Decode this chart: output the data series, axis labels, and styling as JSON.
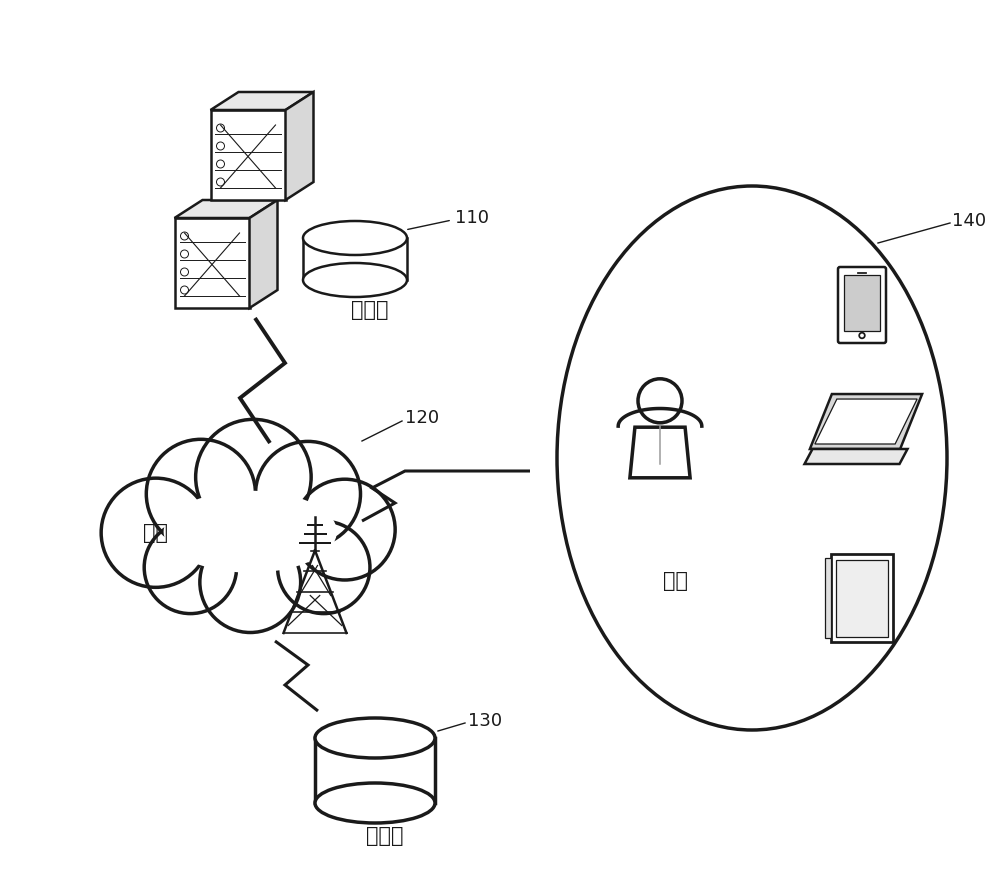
{
  "bg_color": "#ffffff",
  "line_color": "#1a1a1a",
  "label_110": "110",
  "label_120": "120",
  "label_130": "130",
  "label_140": "140",
  "text_server": "服务器",
  "text_network": "网络",
  "text_database": "数据库",
  "text_terminal": "终端",
  "figsize": [
    10.0,
    8.93
  ],
  "dpi": 100
}
